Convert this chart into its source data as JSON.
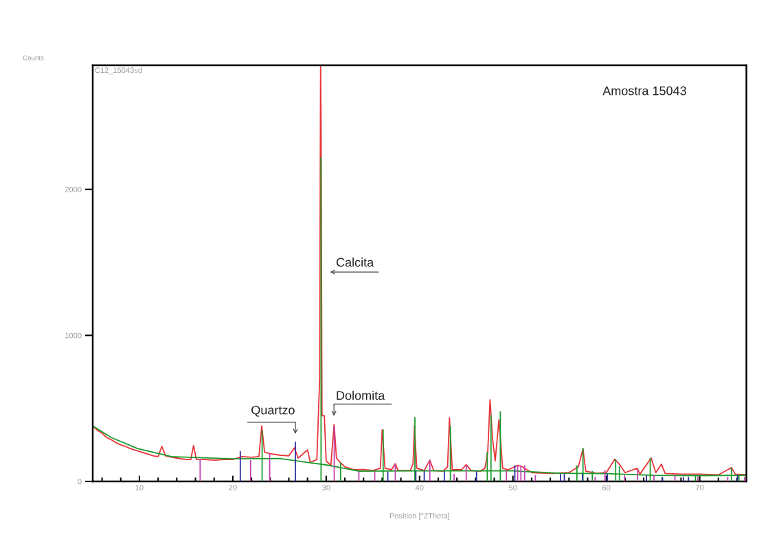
{
  "chart_data": {
    "type": "line",
    "xlabel": "Position [°2Theta]",
    "ylabel": "Counts",
    "xlim": [
      5,
      75
    ],
    "ylim": [
      0,
      2850
    ],
    "xticks": [
      10,
      20,
      30,
      40,
      50,
      60,
      70
    ],
    "yticks": [
      0,
      1000,
      2000
    ],
    "grid": false,
    "legend": false,
    "annotations": [
      "C12_15043sd",
      "Amostra 15043",
      "Quartzo",
      "Calcita",
      "Dolomita"
    ],
    "series": [
      {
        "color": "#e8343a",
        "x": [
          5.0,
          5.5,
          6.0,
          6.5,
          7.0,
          7.5,
          8.0,
          8.5,
          9.0,
          9.5,
          10.0,
          10.5,
          11.0,
          11.5,
          12.0,
          12.4,
          12.8,
          13.5,
          14.0,
          15.0,
          15.5,
          15.8,
          16.1,
          17.0,
          18.0,
          19.0,
          20.0,
          21.0,
          22.0,
          22.8,
          23.1,
          23.4,
          24.0,
          25.0,
          26.0,
          26.6,
          27.0,
          28.0,
          28.3,
          29.0,
          29.3,
          29.4,
          29.45,
          29.55,
          29.8,
          30.0,
          30.5,
          30.85,
          31.1,
          31.5,
          32.0,
          33.0,
          34.0,
          35.0,
          35.8,
          36.0,
          36.3,
          37.0,
          37.4,
          37.7,
          39.0,
          39.3,
          39.45,
          39.7,
          40.5,
          41.1,
          41.5,
          42.5,
          43.0,
          43.2,
          43.5,
          44.5,
          45.0,
          45.5,
          46.5,
          47.0,
          47.3,
          47.55,
          47.8,
          48.1,
          48.5,
          48.9,
          49.5,
          50.5,
          51.0,
          52.0,
          54.0,
          56.0,
          57.0,
          57.5,
          57.8,
          59.0,
          60.0,
          60.9,
          61.5,
          62.0,
          63.3,
          63.6,
          64.8,
          65.3,
          65.9,
          66.3,
          68.0,
          70.0,
          72.0,
          73.4,
          73.8,
          75.0
        ],
        "values": [
          380,
          350,
          330,
          300,
          285,
          265,
          250,
          240,
          225,
          215,
          205,
          195,
          185,
          175,
          170,
          240,
          175,
          165,
          160,
          150,
          150,
          245,
          150,
          150,
          145,
          150,
          150,
          170,
          165,
          170,
          380,
          200,
          190,
          180,
          175,
          230,
          160,
          215,
          130,
          150,
          700,
          2850,
          2460,
          450,
          450,
          140,
          110,
          390,
          160,
          130,
          100,
          80,
          82,
          75,
          90,
          353,
          90,
          80,
          122,
          75,
          75,
          120,
          380,
          90,
          75,
          146,
          75,
          70,
          100,
          437,
          80,
          80,
          115,
          75,
          70,
          90,
          200,
          559,
          300,
          140,
          423,
          90,
          80,
          110,
          100,
          60,
          55,
          60,
          100,
          221,
          70,
          55,
          60,
          152,
          110,
          60,
          90,
          50,
          160,
          60,
          118,
          55,
          50,
          50,
          45,
          94,
          50,
          45
        ]
      },
      {
        "color": "#1a9a2a",
        "x": [
          5.0,
          7.0,
          9.8,
          13.5,
          20.0,
          25.0,
          27.9,
          30.0,
          32.0,
          33.5,
          40.0,
          50.0,
          55.0,
          60.0,
          65.0,
          70.0,
          75.0
        ],
        "values": [
          380,
          300,
          225,
          169,
          155,
          157,
          131,
          113,
          89,
          70,
          72,
          72,
          56,
          54,
          42,
          40,
          42
        ]
      },
      {
        "type": "bar",
        "color": "#1a9a2a",
        "x": [
          23.14,
          29.45,
          31.54,
          36.1,
          39.5,
          43.3,
          47.25,
          47.65,
          48.65,
          56.85,
          57.5,
          58.5,
          61.0,
          61.4,
          64.7,
          69.55,
          73.4,
          74.2
        ],
        "values": [
          349,
          2220,
          131,
          355,
          441,
          380,
          202,
          455,
          479,
          110,
          230,
          72,
          152,
          103,
          160,
          42,
          94,
          42
        ]
      },
      {
        "type": "bar",
        "color": "#2a2aa0",
        "x": [
          20.8,
          26.7,
          36.6,
          39.6,
          40.5,
          42.65,
          46.1,
          50.2,
          55.1,
          55.5,
          57.45,
          60.1,
          64.3,
          66.0,
          68.25,
          68.8,
          74.05
        ],
        "values": [
          207,
          272,
          67,
          70,
          70,
          70,
          70,
          110,
          52,
          52,
          52,
          52,
          42,
          31,
          31,
          31,
          42
        ]
      },
      {
        "type": "bar",
        "color": "#c040b0",
        "x": [
          16.5,
          21.9,
          23.95,
          30.86,
          33.5,
          35.2,
          37.4,
          41.1,
          43.7,
          45.0,
          49.3,
          50.5,
          50.85,
          51.25,
          52.4,
          58.8,
          59.85,
          61.95,
          63.35,
          65.1,
          67.35,
          69.8,
          73.0,
          74.8
        ],
        "values": [
          155,
          146,
          192,
          380,
          67,
          67,
          122,
          146,
          52,
          110,
          77,
          110,
          110,
          110,
          42,
          31,
          77,
          42,
          84,
          42,
          42,
          31,
          31,
          31
        ]
      }
    ]
  }
}
